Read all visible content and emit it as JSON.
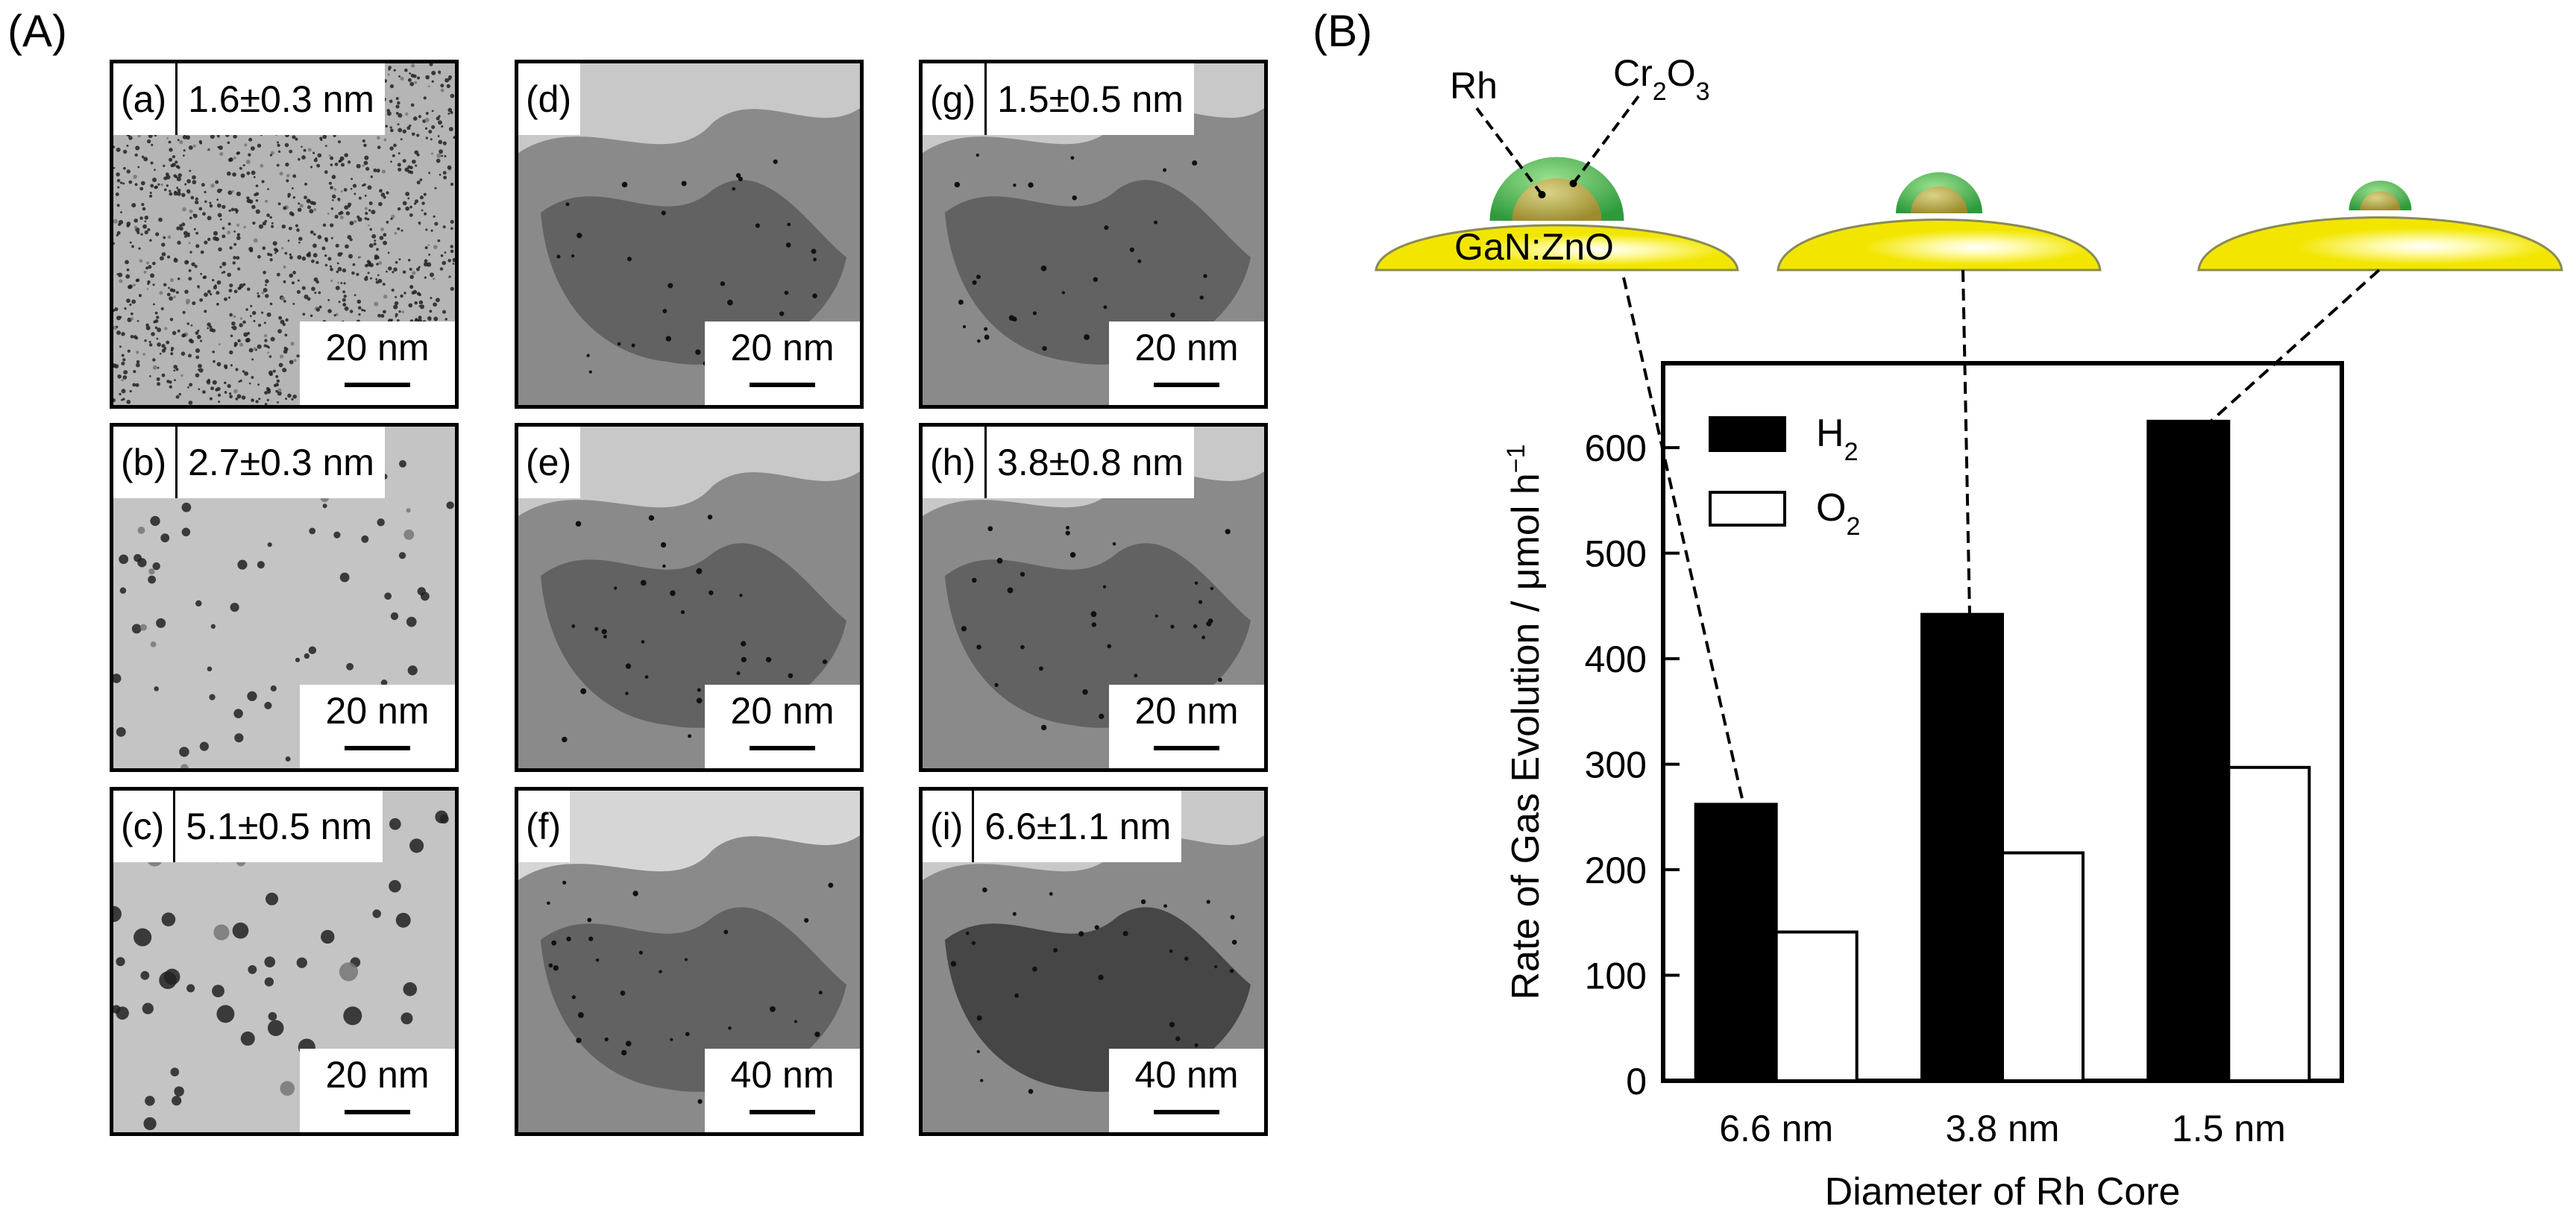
{
  "panels": {
    "A": "(A)",
    "B": "(B)"
  },
  "tem_images": [
    {
      "letter": "(a)",
      "size": "1.6±0.3 nm",
      "scale": "20 nm",
      "texture": "fine-dots"
    },
    {
      "letter": "(b)",
      "size": "2.7±0.3 nm",
      "scale": "20 nm",
      "texture": "medium-dots"
    },
    {
      "letter": "(c)",
      "size": "5.1±0.5 nm",
      "scale": "20 nm",
      "texture": "large-dots"
    },
    {
      "letter": "(d)",
      "size": "",
      "scale": "20 nm",
      "texture": "support"
    },
    {
      "letter": "(e)",
      "size": "",
      "scale": "20 nm",
      "texture": "support"
    },
    {
      "letter": "(f)",
      "size": "",
      "scale": "40 nm",
      "texture": "support-light"
    },
    {
      "letter": "(g)",
      "size": "1.5±0.5 nm",
      "scale": "20 nm",
      "texture": "support"
    },
    {
      "letter": "(h)",
      "size": "3.8±0.8 nm",
      "scale": "20 nm",
      "texture": "support"
    },
    {
      "letter": "(i)",
      "size": "6.6±1.1 nm",
      "scale": "40 nm",
      "texture": "support-dark"
    }
  ],
  "schematic": {
    "rh": "Rh",
    "cr2o3_base": "Cr",
    "cr2o3_sub1": "2",
    "cr2o3_mid": "O",
    "cr2o3_sub2": "3",
    "support": "GaN:ZnO",
    "colors": {
      "support": "#f2e600",
      "shell": "#2e9a3c",
      "core": "#a88a2a"
    }
  },
  "chart_data": {
    "type": "bar",
    "categories": [
      "6.6 nm",
      "3.8 nm",
      "1.5 nm"
    ],
    "series": [
      {
        "name": "H2",
        "values": [
          262,
          442,
          625
        ],
        "color": "#000000"
      },
      {
        "name": "O2",
        "values": [
          141,
          216,
          297
        ],
        "color": "#ffffff"
      }
    ],
    "legend": [
      {
        "base": "H",
        "sub": "2"
      },
      {
        "base": "O",
        "sub": "2"
      }
    ],
    "xlabel": "Diameter of Rh Core",
    "ylabel": "Rate of  Gas Evolution / μmol h",
    "ylabel_sup": "−1",
    "ylim": [
      0,
      680
    ],
    "yticks": [
      0,
      100,
      200,
      300,
      400,
      500,
      600
    ],
    "legend_position": "top-left",
    "grid": false
  }
}
